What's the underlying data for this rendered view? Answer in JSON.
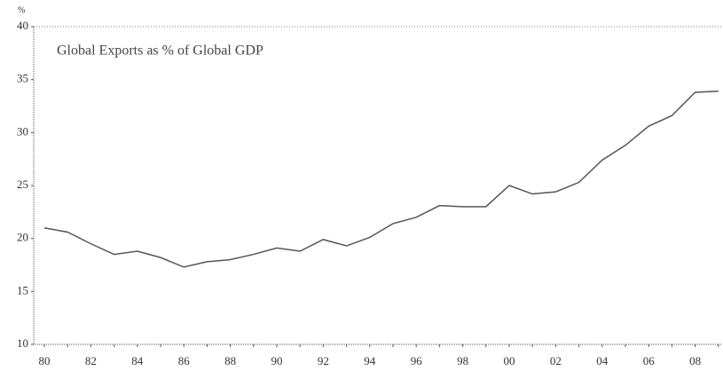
{
  "chart_data": {
    "type": "line",
    "title": "Global Exports as % of Global GDP",
    "y_unit_label": "%",
    "categories": [
      "80",
      null,
      "82",
      null,
      "84",
      null,
      "86",
      null,
      "88",
      null,
      "90",
      null,
      "92",
      null,
      "94",
      null,
      "96",
      null,
      "98",
      null,
      "00",
      null,
      "02",
      null,
      "04",
      null,
      "06",
      null,
      "08",
      null
    ],
    "series": [
      {
        "name": "Global Exports as % of Global GDP",
        "color": "#555555",
        "values": [
          21.0,
          20.6,
          19.5,
          18.5,
          18.8,
          18.2,
          17.3,
          17.8,
          18.0,
          18.5,
          19.1,
          18.8,
          19.9,
          19.3,
          20.1,
          21.4,
          22.0,
          23.1,
          23.0,
          23.0,
          25.0,
          24.2,
          24.4,
          25.3,
          27.4,
          28.8,
          30.6,
          31.6,
          33.8,
          33.9
        ]
      }
    ],
    "ylim": [
      10,
      40
    ],
    "yticks": [
      10,
      15,
      20,
      25,
      30,
      35,
      40
    ],
    "grid": false
  }
}
